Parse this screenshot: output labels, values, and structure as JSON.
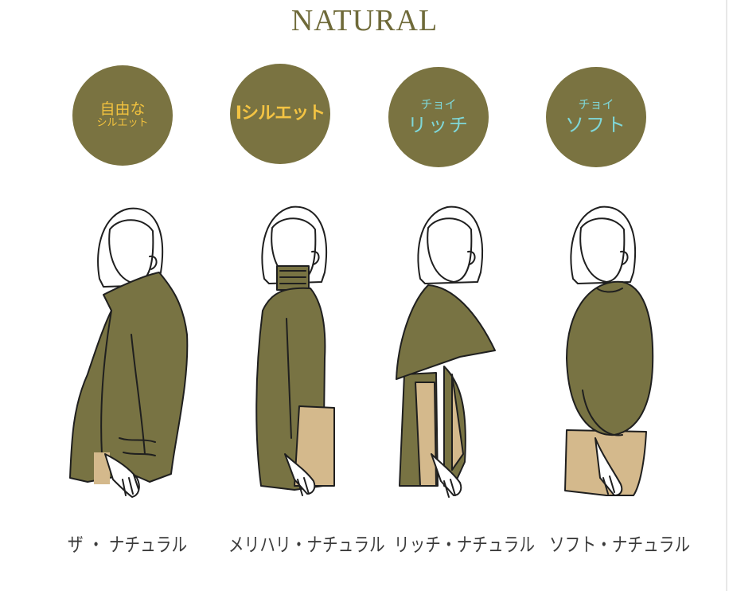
{
  "title": "NATURAL",
  "badges": [
    {
      "line1": "自由な",
      "line2": "シルエット"
    },
    {
      "line1": "Iシルエット"
    },
    {
      "line1": "チョイ",
      "line2": "リッチ"
    },
    {
      "line1": "チョイ",
      "line2": "ソフト"
    }
  ],
  "captions": [
    "ザ ・ ナチュラル",
    "メリハリ・ナチュラル",
    "リッチ・ナチュラル",
    "ソフト・ナチュラル"
  ],
  "colors": {
    "olive": "#7a7341",
    "garment": "#787343",
    "beige": "#d4b98c",
    "gold_text": "#f2c23e",
    "cyan_text": "#7fd7d8",
    "title": "#6f6a39"
  }
}
